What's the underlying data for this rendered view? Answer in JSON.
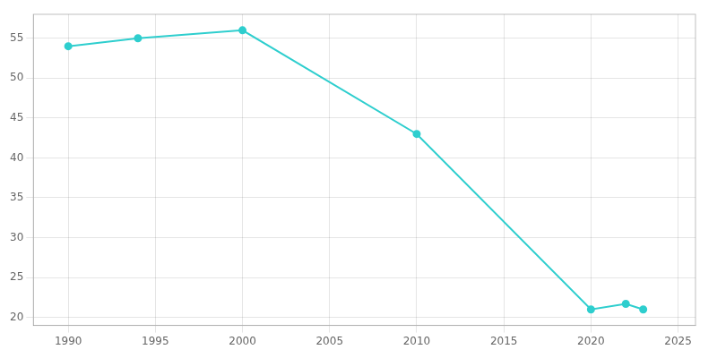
{
  "chart_data": {
    "type": "line",
    "x": [
      1990,
      1994,
      2000,
      2010,
      2020,
      2022,
      2023
    ],
    "values": [
      54.0,
      55.0,
      56.0,
      43.0,
      21.0,
      21.7,
      21.0
    ],
    "color": "#2ECECE",
    "marker": "circle",
    "xlim": [
      1988,
      2026
    ],
    "ylim": [
      19,
      58
    ],
    "xticks": [
      1990,
      1995,
      2000,
      2005,
      2010,
      2015,
      2020,
      2025
    ],
    "yticks": [
      20,
      25,
      30,
      35,
      40,
      45,
      50,
      55
    ],
    "grid": true
  }
}
